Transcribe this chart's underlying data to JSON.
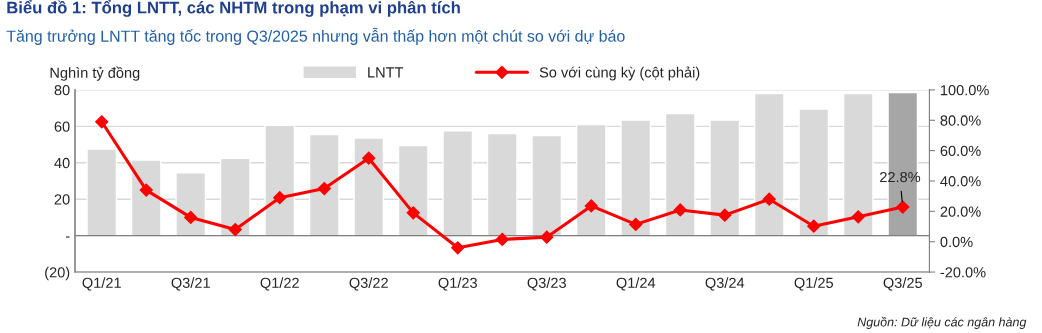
{
  "chart_data": {
    "type": "bar",
    "title": "Biểu đồ 1: Tổng LNTT, các NHTM trong phạm vi phân tích",
    "subtitle": "Tăng trưởng LNTT tăng tốc trong Q3/2025 nhưng vẫn thấp hơn một chút so với dự báo",
    "ylabel": "Nghìn tỷ đồng",
    "categories": [
      "Q1/21",
      null,
      "Q3/21",
      null,
      "Q1/22",
      null,
      "Q3/22",
      null,
      "Q1/23",
      null,
      "Q3/23",
      null,
      "Q1/24",
      null,
      "Q3/24",
      null,
      "Q1/25",
      null,
      "Q3/25"
    ],
    "series": [
      {
        "name": "LNTT",
        "colors": [
          "#d9d9d9",
          "#d9d9d9",
          "#d9d9d9",
          "#d9d9d9",
          "#d9d9d9",
          "#d9d9d9",
          "#d9d9d9",
          "#d9d9d9",
          "#d9d9d9",
          "#d9d9d9",
          "#d9d9d9",
          "#d9d9d9",
          "#d9d9d9",
          "#d9d9d9",
          "#d9d9d9",
          "#d9d9d9",
          "#d9d9d9",
          "#d9d9d9",
          "#a6a6a6"
        ],
        "values": [
          47.5,
          41.5,
          34.5,
          42.5,
          60.5,
          55.5,
          53.5,
          49.5,
          57.5,
          56,
          55,
          61,
          63.5,
          67,
          63.5,
          78,
          69.5,
          78,
          78.5
        ]
      },
      {
        "name": "So với cùng kỳ (cột phải)",
        "type": "line",
        "axis": "y2",
        "color": "#ff0000",
        "values": [
          79,
          34,
          16,
          8,
          29,
          35,
          55,
          19,
          -4,
          1.5,
          3,
          23.6,
          11.4,
          20.9,
          17.5,
          28,
          10.2,
          16.4,
          22.8
        ],
        "value_labels": [
          null,
          null,
          null,
          null,
          null,
          null,
          null,
          null,
          null,
          null,
          null,
          null,
          null,
          null,
          null,
          null,
          null,
          null,
          "22.8%"
        ]
      }
    ],
    "ylim": [
      -20,
      80
    ],
    "yticks": [
      {
        "value": -20,
        "label": "(20)"
      },
      {
        "value": 0,
        "label": "-"
      },
      20,
      40,
      60,
      80
    ],
    "y2lim": [
      -20,
      100
    ],
    "y2ticks": [
      {
        "value": -20,
        "label": "-20.0%"
      },
      {
        "value": 0,
        "label": "0.0%"
      },
      {
        "value": 20,
        "label": "20.0%"
      },
      {
        "value": 40,
        "label": "40.0%"
      },
      {
        "value": 60,
        "label": "60.0%"
      },
      {
        "value": 80,
        "label": "80.0%"
      },
      {
        "value": 100,
        "label": "100.0%"
      }
    ],
    "grid": "y",
    "legend": "top",
    "marker": "diamond",
    "line_style": "solid",
    "annotations": [
      "Nguồn: Dữ liệu các ngân hàng"
    ]
  }
}
